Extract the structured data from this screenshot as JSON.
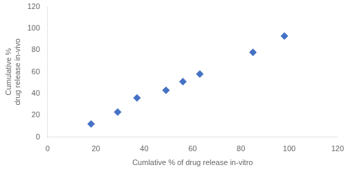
{
  "chart_data": {
    "type": "scatter",
    "x_label": "Cumlative % of drug release in-vitro",
    "y_label": "Cumulative %\ndrug release in-vivo",
    "x": [
      18,
      29,
      37,
      49,
      56,
      63,
      85,
      98
    ],
    "values": [
      12,
      23,
      36,
      43,
      51,
      58,
      78,
      93
    ],
    "color": "#4472C4",
    "marker": "diamond",
    "xlim": [
      0,
      120
    ],
    "ylim": [
      0,
      120
    ],
    "xticks": [
      0,
      20,
      40,
      60,
      80,
      100,
      120
    ],
    "yticks": [
      0,
      20,
      40,
      60,
      80,
      100,
      120
    ],
    "grid": false
  }
}
